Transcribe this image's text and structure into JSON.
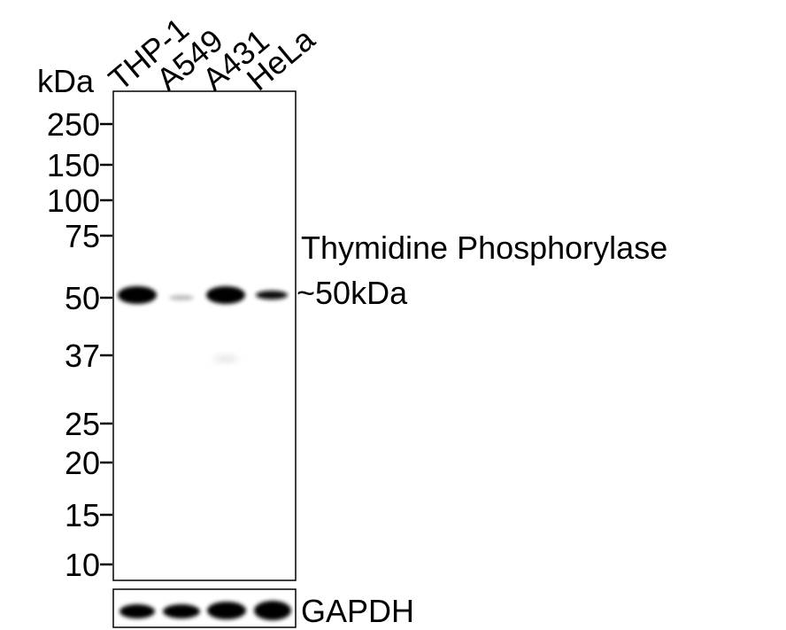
{
  "unit": "kDa",
  "lanes": [
    "THP-1",
    "A549",
    "A431",
    "HeLa"
  ],
  "markers": [
    250,
    150,
    100,
    75,
    50,
    37,
    25,
    20,
    15,
    10
  ],
  "target": {
    "name": "Thymidine Phosphorylase",
    "size": "~50kDa"
  },
  "loading_control": "GAPDH"
}
